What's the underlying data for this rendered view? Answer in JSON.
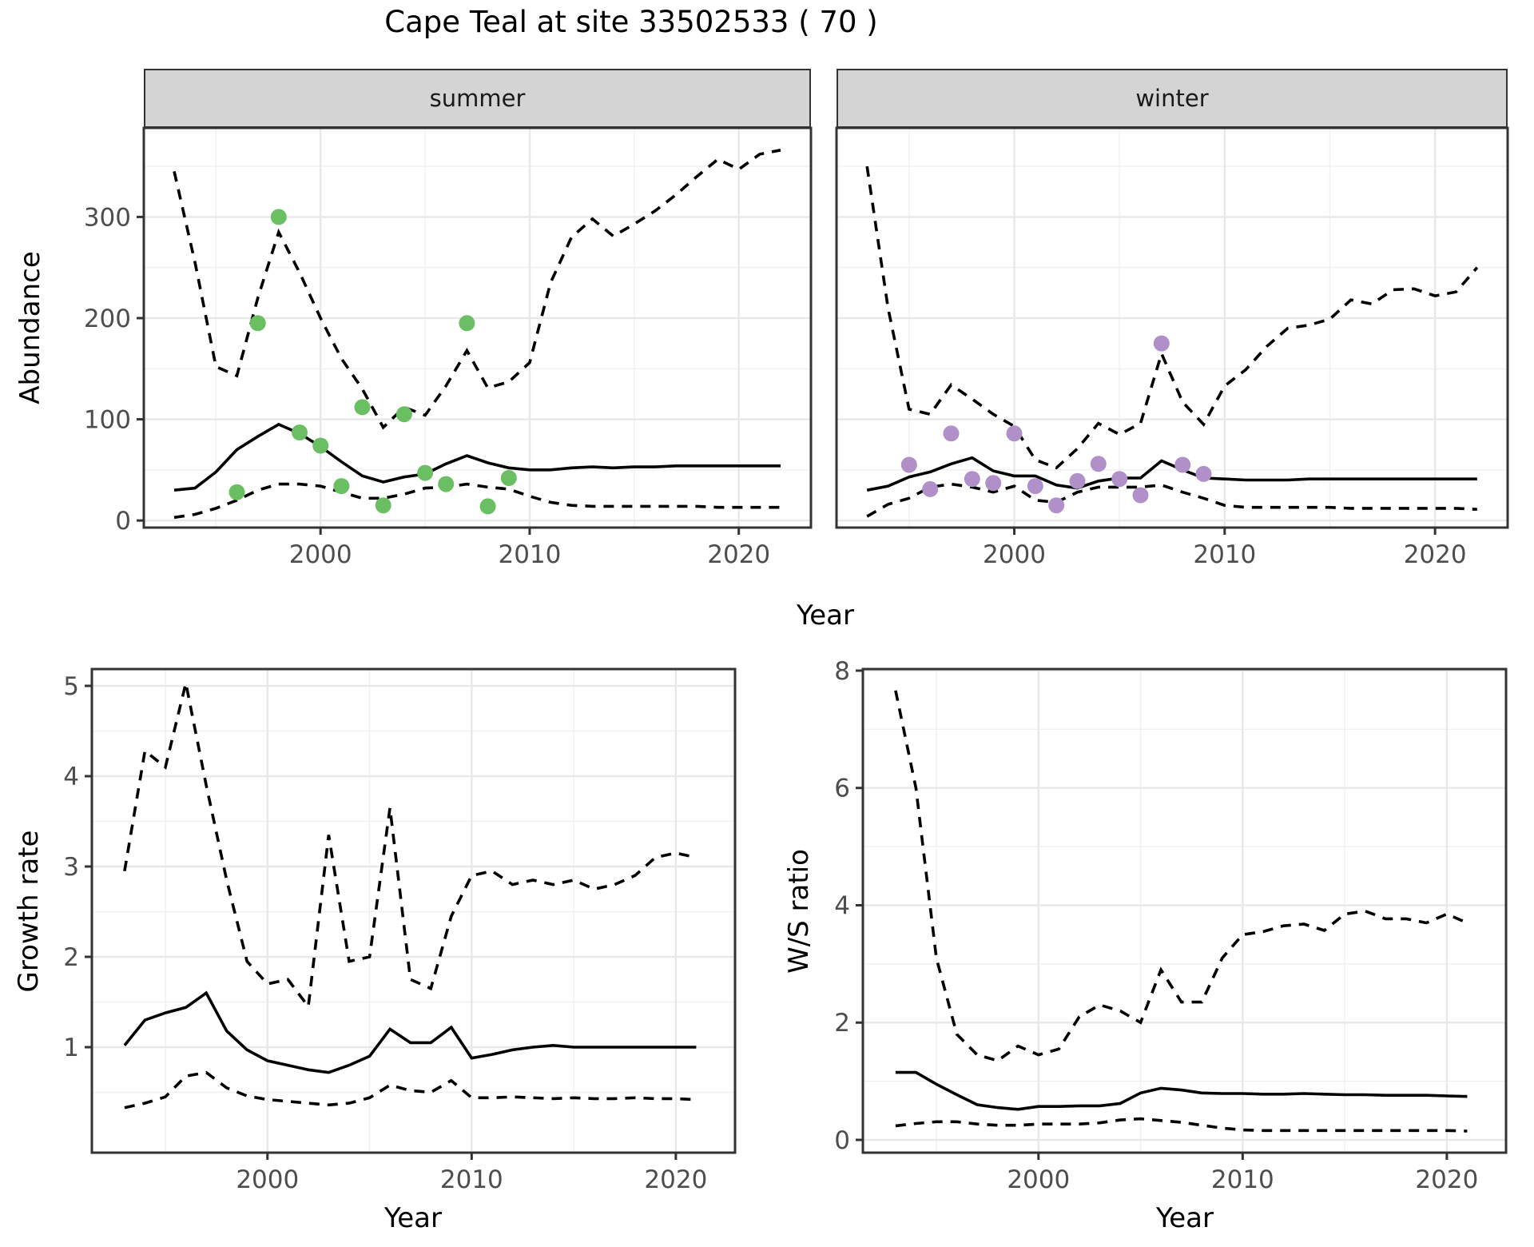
{
  "title": "Cape Teal at site 33502533 ( 70 )",
  "colors": {
    "summer_point": "#6abf63",
    "winter_point": "#b18fc9",
    "line": "#000000",
    "grid_major": "#e8e8e8",
    "grid_minor": "#f0f0f0",
    "strip_fill": "#d4d4d4",
    "panel_border": "#333333",
    "tick_label": "#4d4d4d",
    "background": "#ffffff"
  },
  "chart_data": [
    {
      "type": "line",
      "facet": "summer",
      "position": "top-left",
      "axes": {
        "xlabel": "Year",
        "ylabel": "Abundance",
        "xlim": [
          1991.55,
          2023.45
        ],
        "ylim": [
          -7,
          388
        ],
        "xticks": [
          2000,
          2010,
          2020
        ],
        "xminor": [
          1995,
          2005,
          2015
        ],
        "yticks": [
          0,
          100,
          200,
          300
        ],
        "yminor": [
          50,
          150,
          250,
          350
        ],
        "grid": true,
        "y_axis_shown": true
      },
      "years": [
        1993,
        1994,
        1995,
        1996,
        1997,
        1998,
        1999,
        2000,
        2001,
        2002,
        2003,
        2004,
        2005,
        2006,
        2007,
        2008,
        2009,
        2010,
        2011,
        2012,
        2013,
        2014,
        2015,
        2016,
        2017,
        2018,
        2019,
        2020,
        2021,
        2022
      ],
      "series": [
        {
          "name": "median",
          "style": "solid",
          "values": [
            30,
            32,
            48,
            70,
            83,
            95,
            86,
            73,
            58,
            44,
            38,
            43,
            46,
            56,
            64,
            57,
            52,
            50,
            50,
            52,
            53,
            52,
            53,
            53,
            54,
            54,
            54,
            54,
            54,
            54
          ]
        },
        {
          "name": "lower_ci",
          "style": "dashed",
          "values": [
            3,
            6,
            12,
            20,
            30,
            36,
            36,
            34,
            28,
            22,
            22,
            26,
            32,
            33,
            36,
            33,
            31,
            24,
            18,
            15,
            14,
            14,
            14,
            14,
            14,
            14,
            13,
            13,
            13,
            13
          ]
        },
        {
          "name": "upper_ci",
          "style": "dashed",
          "values": [
            345,
            255,
            152,
            143,
            220,
            285,
            245,
            200,
            160,
            130,
            92,
            112,
            104,
            133,
            168,
            131,
            137,
            156,
            235,
            280,
            298,
            281,
            293,
            306,
            322,
            340,
            357,
            347,
            362,
            366
          ]
        }
      ],
      "points": {
        "name": "observed_counts",
        "color": "#6abf63",
        "data": [
          [
            1996,
            28
          ],
          [
            1997,
            195
          ],
          [
            1998,
            300
          ],
          [
            1999,
            87
          ],
          [
            2000,
            74
          ],
          [
            2001,
            34
          ],
          [
            2002,
            112
          ],
          [
            2003,
            15
          ],
          [
            2004,
            105
          ],
          [
            2005,
            47
          ],
          [
            2006,
            36
          ],
          [
            2007,
            195
          ],
          [
            2008,
            14
          ],
          [
            2009,
            42
          ]
        ]
      }
    },
    {
      "type": "line",
      "facet": "winter",
      "position": "top-right",
      "axes": {
        "xlabel": "Year",
        "ylabel": "Abundance",
        "xlim": [
          1991.55,
          2023.45
        ],
        "ylim": [
          -7,
          388
        ],
        "xticks": [
          2000,
          2010,
          2020
        ],
        "xminor": [
          1995,
          2005,
          2015
        ],
        "yticks": [
          0,
          100,
          200,
          300
        ],
        "yminor": [
          50,
          150,
          250,
          350
        ],
        "grid": true,
        "y_axis_shown": false
      },
      "years": [
        1993,
        1994,
        1995,
        1996,
        1997,
        1998,
        1999,
        2000,
        2001,
        2002,
        2003,
        2004,
        2005,
        2006,
        2007,
        2008,
        2009,
        2010,
        2011,
        2012,
        2013,
        2014,
        2015,
        2016,
        2017,
        2018,
        2019,
        2020,
        2021,
        2022
      ],
      "series": [
        {
          "name": "median",
          "style": "solid",
          "values": [
            30,
            34,
            43,
            48,
            56,
            62,
            49,
            44,
            44,
            35,
            32,
            39,
            42,
            42,
            59,
            50,
            42,
            41,
            40,
            40,
            40,
            41,
            41,
            41,
            41,
            41,
            41,
            41,
            41,
            41
          ]
        },
        {
          "name": "lower_ci",
          "style": "dashed",
          "values": [
            4,
            16,
            22,
            33,
            36,
            33,
            28,
            34,
            20,
            18,
            28,
            33,
            33,
            33,
            35,
            28,
            22,
            15,
            13,
            13,
            13,
            13,
            13,
            12,
            12,
            12,
            12,
            12,
            12,
            11
          ]
        },
        {
          "name": "upper_ci",
          "style": "dashed",
          "values": [
            350,
            210,
            110,
            105,
            134,
            120,
            105,
            93,
            60,
            52,
            71,
            96,
            85,
            96,
            165,
            117,
            95,
            133,
            149,
            172,
            190,
            193,
            199,
            218,
            214,
            228,
            229,
            222,
            226,
            250
          ]
        }
      ],
      "points": {
        "name": "observed_counts",
        "color": "#b18fc9",
        "data": [
          [
            1995,
            55
          ],
          [
            1996,
            31
          ],
          [
            1997,
            86
          ],
          [
            1998,
            41
          ],
          [
            1999,
            37
          ],
          [
            2000,
            86
          ],
          [
            2001,
            34
          ],
          [
            2002,
            15
          ],
          [
            2003,
            39
          ],
          [
            2004,
            56
          ],
          [
            2005,
            41
          ],
          [
            2006,
            25
          ],
          [
            2007,
            175
          ],
          [
            2008,
            55
          ],
          [
            2009,
            46
          ]
        ]
      }
    },
    {
      "type": "line",
      "facet": "",
      "position": "bottom-left",
      "axes": {
        "xlabel": "Year",
        "ylabel": "Growth rate",
        "xlim": [
          1991.4,
          2022.9
        ],
        "ylim": [
          -0.168,
          5.186
        ],
        "xticks": [
          2000,
          2010,
          2020
        ],
        "xminor": [
          1995,
          2005,
          2015
        ],
        "yticks": [
          1,
          2,
          3,
          4,
          5
        ],
        "yminor": [
          0.5,
          1.5,
          2.5,
          3.5,
          4.5
        ],
        "grid": true,
        "y_axis_shown": true
      },
      "years": [
        1993,
        1994,
        1995,
        1996,
        1997,
        1998,
        1999,
        2000,
        2001,
        2002,
        2003,
        2004,
        2005,
        2006,
        2007,
        2008,
        2009,
        2010,
        2011,
        2012,
        2013,
        2014,
        2015,
        2016,
        2017,
        2018,
        2019,
        2020,
        2021
      ],
      "series": [
        {
          "name": "median",
          "style": "solid",
          "values": [
            1.02,
            1.3,
            1.38,
            1.44,
            1.6,
            1.18,
            0.97,
            0.85,
            0.8,
            0.75,
            0.72,
            0.8,
            0.9,
            1.2,
            1.05,
            1.05,
            1.22,
            0.88,
            0.92,
            0.97,
            1.0,
            1.02,
            1.0,
            1.0,
            1.0,
            1.0,
            1.0,
            1.0,
            1.0
          ]
        },
        {
          "name": "lower_ci",
          "style": "dashed",
          "values": [
            0.33,
            0.38,
            0.45,
            0.68,
            0.72,
            0.55,
            0.46,
            0.42,
            0.4,
            0.38,
            0.36,
            0.38,
            0.44,
            0.58,
            0.52,
            0.5,
            0.63,
            0.44,
            0.44,
            0.45,
            0.44,
            0.43,
            0.44,
            0.43,
            0.43,
            0.44,
            0.43,
            0.43,
            0.42
          ]
        },
        {
          "name": "upper_ci",
          "style": "dashed",
          "values": [
            2.95,
            4.28,
            4.1,
            5.03,
            3.9,
            2.85,
            1.95,
            1.7,
            1.75,
            1.45,
            3.35,
            1.95,
            2.0,
            3.65,
            1.75,
            1.65,
            2.45,
            2.9,
            2.95,
            2.8,
            2.85,
            2.8,
            2.85,
            2.75,
            2.8,
            2.9,
            3.1,
            3.15,
            3.1
          ]
        }
      ],
      "points": {
        "name": "",
        "color": "",
        "data": []
      }
    },
    {
      "type": "line",
      "facet": "",
      "position": "bottom-right",
      "axes": {
        "xlabel": "Year",
        "ylabel": "W/S ratio",
        "xlim": [
          1991.4,
          2022.9
        ],
        "ylim": [
          -0.218,
          8.027
        ],
        "xticks": [
          2000,
          2010,
          2020
        ],
        "xminor": [
          1995,
          2005,
          2015
        ],
        "yticks": [
          0,
          2,
          4,
          6,
          8
        ],
        "yminor": [
          1,
          3,
          5,
          7
        ],
        "grid": true,
        "y_axis_shown": true
      },
      "years": [
        1993,
        1994,
        1995,
        1996,
        1997,
        1998,
        1999,
        2000,
        2001,
        2002,
        2003,
        2004,
        2005,
        2006,
        2007,
        2008,
        2009,
        2010,
        2011,
        2012,
        2013,
        2014,
        2015,
        2016,
        2017,
        2018,
        2019,
        2020,
        2021
      ],
      "series": [
        {
          "name": "median",
          "style": "solid",
          "values": [
            1.15,
            1.15,
            0.95,
            0.77,
            0.6,
            0.55,
            0.52,
            0.57,
            0.57,
            0.58,
            0.58,
            0.62,
            0.8,
            0.88,
            0.85,
            0.8,
            0.79,
            0.79,
            0.78,
            0.78,
            0.79,
            0.78,
            0.77,
            0.77,
            0.76,
            0.76,
            0.76,
            0.75,
            0.74
          ]
        },
        {
          "name": "lower_ci",
          "style": "dashed",
          "values": [
            0.24,
            0.28,
            0.31,
            0.31,
            0.27,
            0.25,
            0.25,
            0.27,
            0.27,
            0.27,
            0.29,
            0.34,
            0.36,
            0.33,
            0.3,
            0.25,
            0.2,
            0.17,
            0.16,
            0.16,
            0.16,
            0.16,
            0.16,
            0.16,
            0.16,
            0.16,
            0.16,
            0.16,
            0.15
          ]
        },
        {
          "name": "upper_ci",
          "style": "dashed",
          "values": [
            7.66,
            6.0,
            3.1,
            1.8,
            1.45,
            1.35,
            1.6,
            1.45,
            1.55,
            2.1,
            2.3,
            2.2,
            2.0,
            2.9,
            2.35,
            2.35,
            3.1,
            3.5,
            3.55,
            3.65,
            3.68,
            3.57,
            3.85,
            3.9,
            3.77,
            3.77,
            3.7,
            3.85,
            3.7
          ]
        }
      ],
      "points": {
        "name": "",
        "color": "",
        "data": []
      }
    }
  ]
}
